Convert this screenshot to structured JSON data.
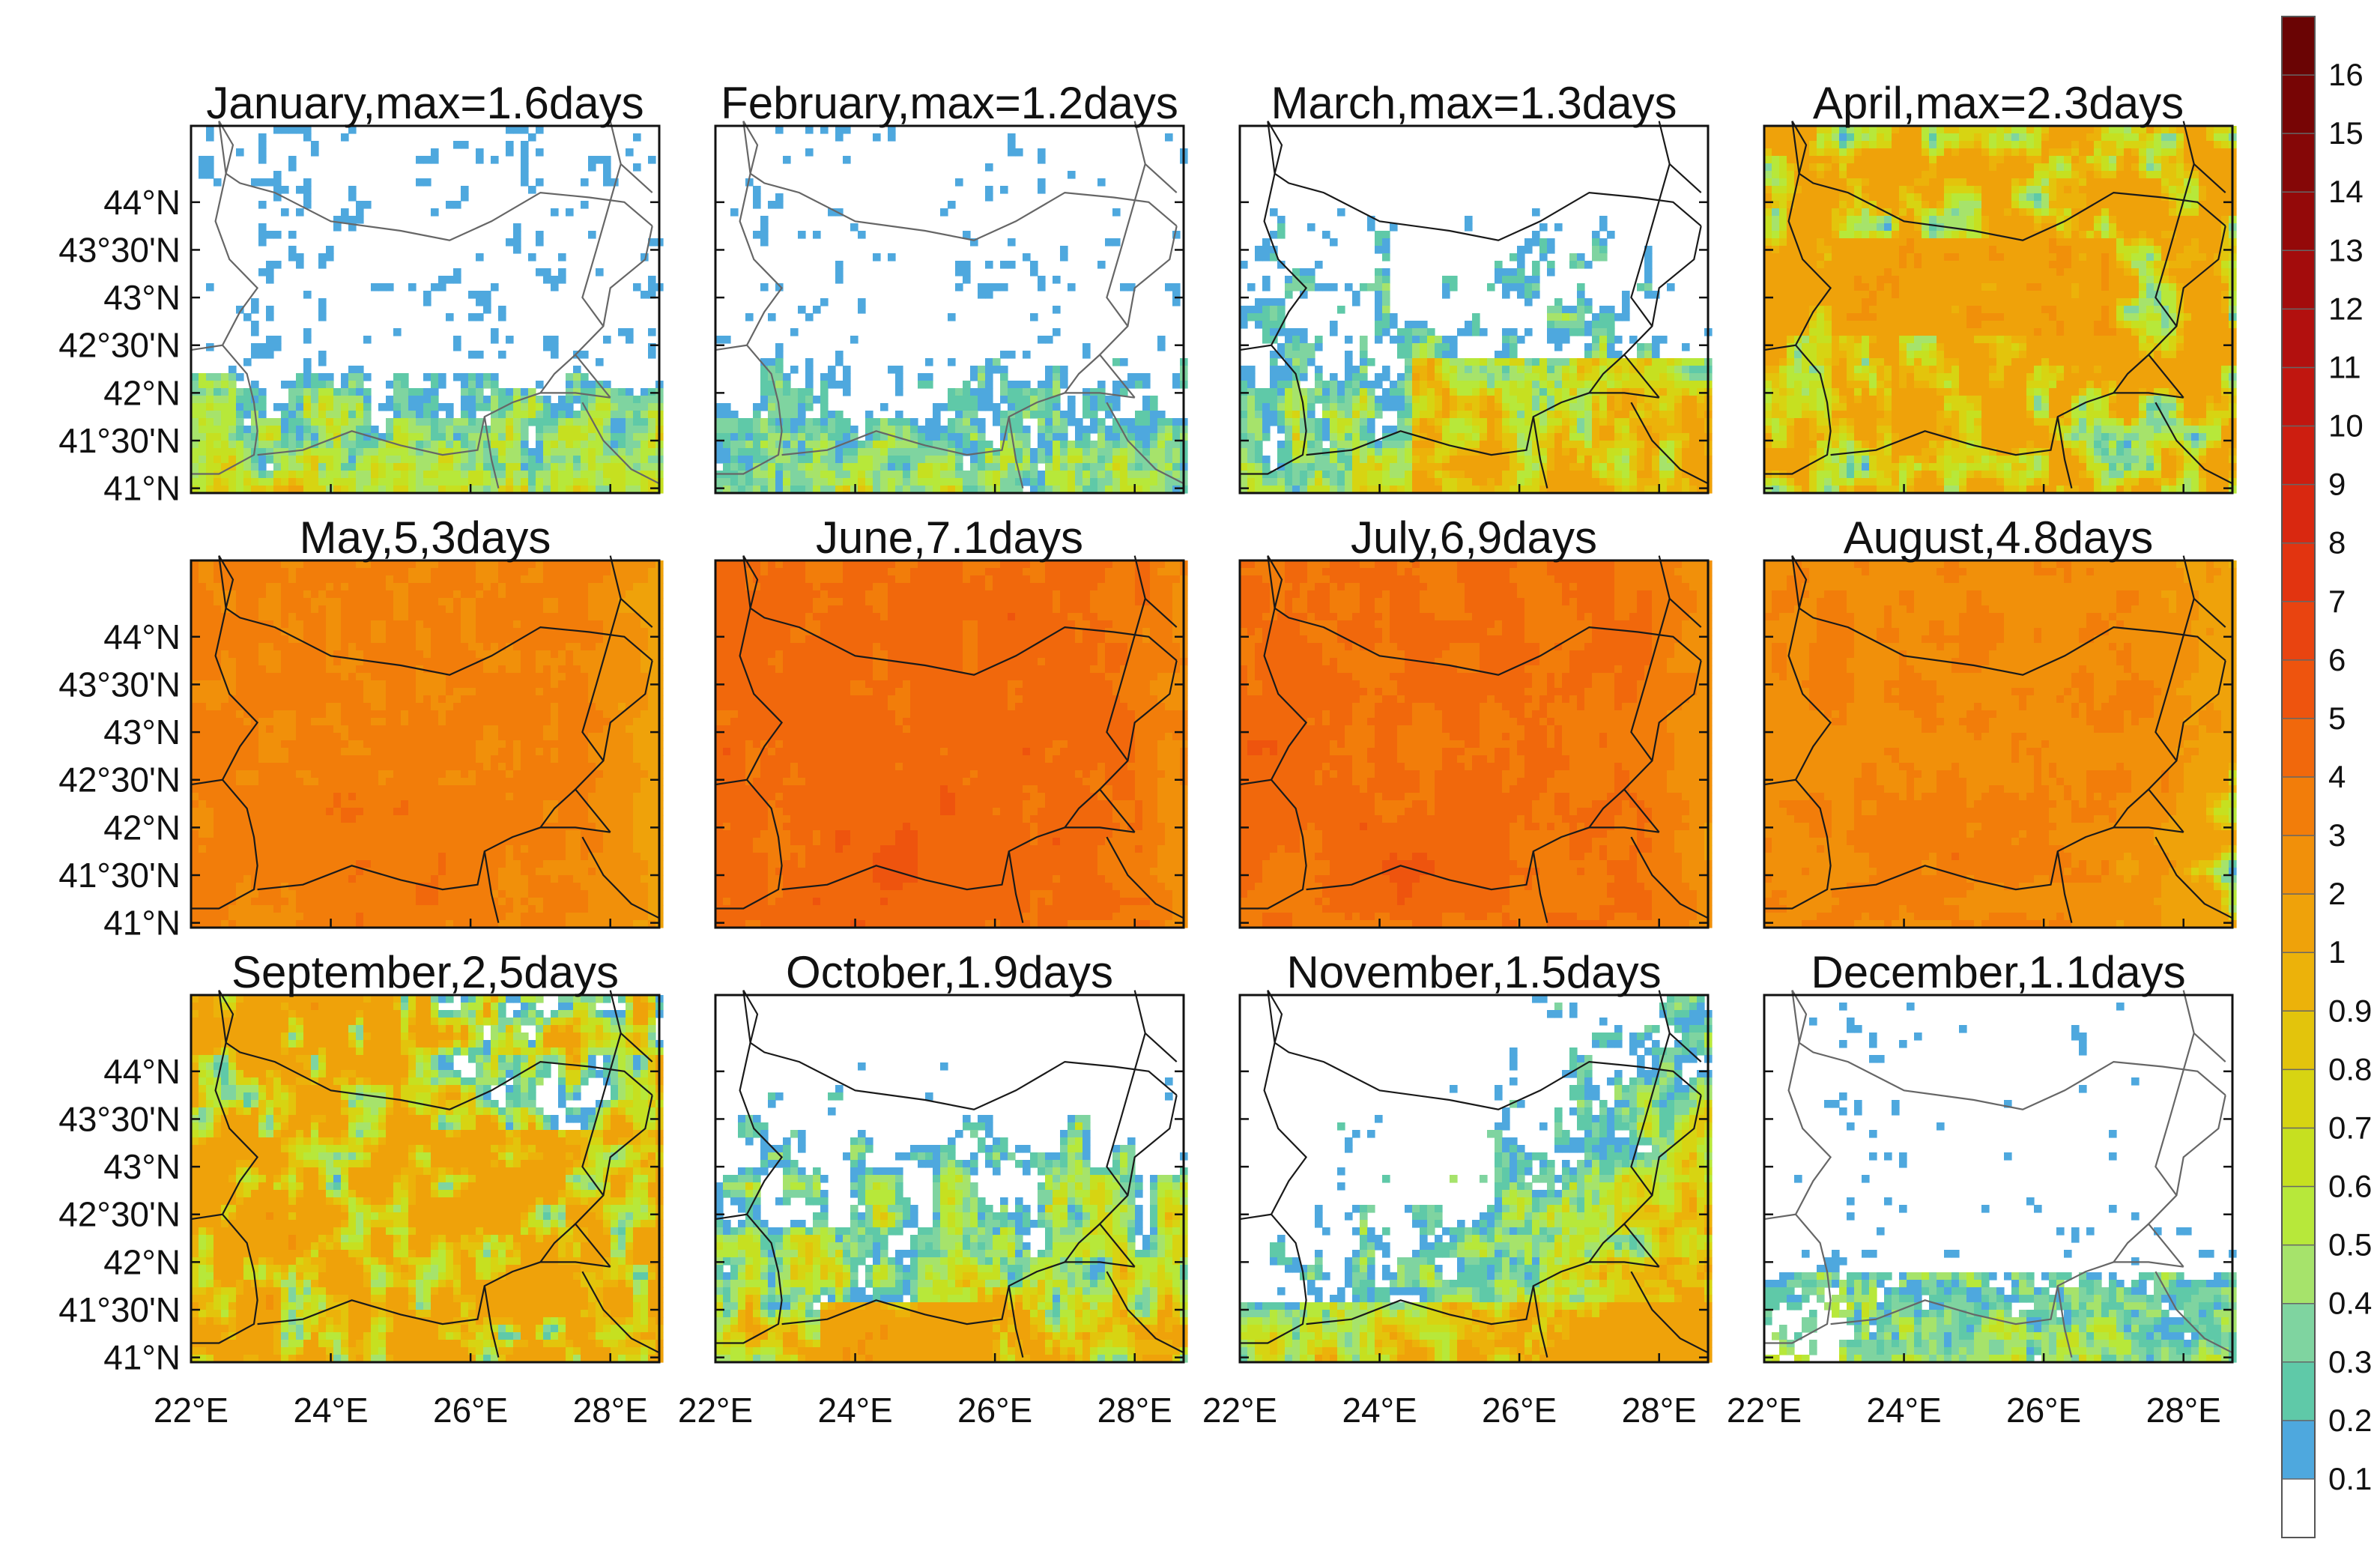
{
  "chart_data": [
    {
      "type": "heatmap",
      "title": "January,max=1.6days",
      "month": "January",
      "max_days": 1.6
    },
    {
      "type": "heatmap",
      "title": "February,max=1.2days",
      "month": "February",
      "max_days": 1.2
    },
    {
      "type": "heatmap",
      "title": "March,max=1.3days",
      "month": "March",
      "max_days": 1.3
    },
    {
      "type": "heatmap",
      "title": "April,max=2.3days",
      "month": "April",
      "max_days": 2.3
    },
    {
      "type": "heatmap",
      "title": "May,5,3days",
      "month": "May",
      "max_days": 5.3
    },
    {
      "type": "heatmap",
      "title": "June,7.1days",
      "month": "June",
      "max_days": 7.1
    },
    {
      "type": "heatmap",
      "title": "July,6,9days",
      "month": "July",
      "max_days": 6.9
    },
    {
      "type": "heatmap",
      "title": "August,4.8days",
      "month": "August",
      "max_days": 4.8
    },
    {
      "type": "heatmap",
      "title": "September,2,5days",
      "month": "September",
      "max_days": 2.5
    },
    {
      "type": "heatmap",
      "title": "October,1.9days",
      "month": "October",
      "max_days": 1.9
    },
    {
      "type": "heatmap",
      "title": "November,1.5days",
      "month": "November",
      "max_days": 1.5
    },
    {
      "type": "heatmap",
      "title": "December,1.1days",
      "month": "December",
      "max_days": 1.1
    }
  ],
  "axes": {
    "lat_ticks": [
      "44°N",
      "43°30'N",
      "43°N",
      "42°30'N",
      "42°N",
      "41°30'N",
      "41°N"
    ],
    "lat_values": [
      44,
      43.5,
      43,
      42.5,
      42,
      41.5,
      41
    ],
    "lon_ticks": [
      "22°E",
      "24°E",
      "26°E",
      "28°E"
    ],
    "lon_values": [
      22,
      24,
      26,
      28
    ],
    "lon_range": [
      22,
      28.7
    ],
    "lat_range": [
      40.95,
      44.8
    ]
  },
  "colorbar": {
    "labels": [
      "16",
      "15",
      "14",
      "13",
      "12",
      "11",
      "10",
      "9",
      "8",
      "7",
      "6",
      "5",
      "4",
      "3",
      "2",
      "1",
      "0.9",
      "0.8",
      "0.7",
      "0.6",
      "0.5",
      "0.4",
      "0.3",
      "0.2",
      "0.1"
    ],
    "colors": [
      "#ffffff",
      "#4ea8de",
      "#5fc9a8",
      "#7fd4a0",
      "#a6e36b",
      "#b7e83a",
      "#c6e020",
      "#d7d412",
      "#e3c40c",
      "#ecb20a",
      "#efa20a",
      "#f1900a",
      "#f27d0a",
      "#f1680c",
      "#ee540e",
      "#e94410",
      "#e23410",
      "#d92810",
      "#cd1e10",
      "#c0160f",
      "#b2100e",
      "#a30c0c",
      "#940909",
      "#850707",
      "#770505",
      "#6a0404"
    ]
  }
}
